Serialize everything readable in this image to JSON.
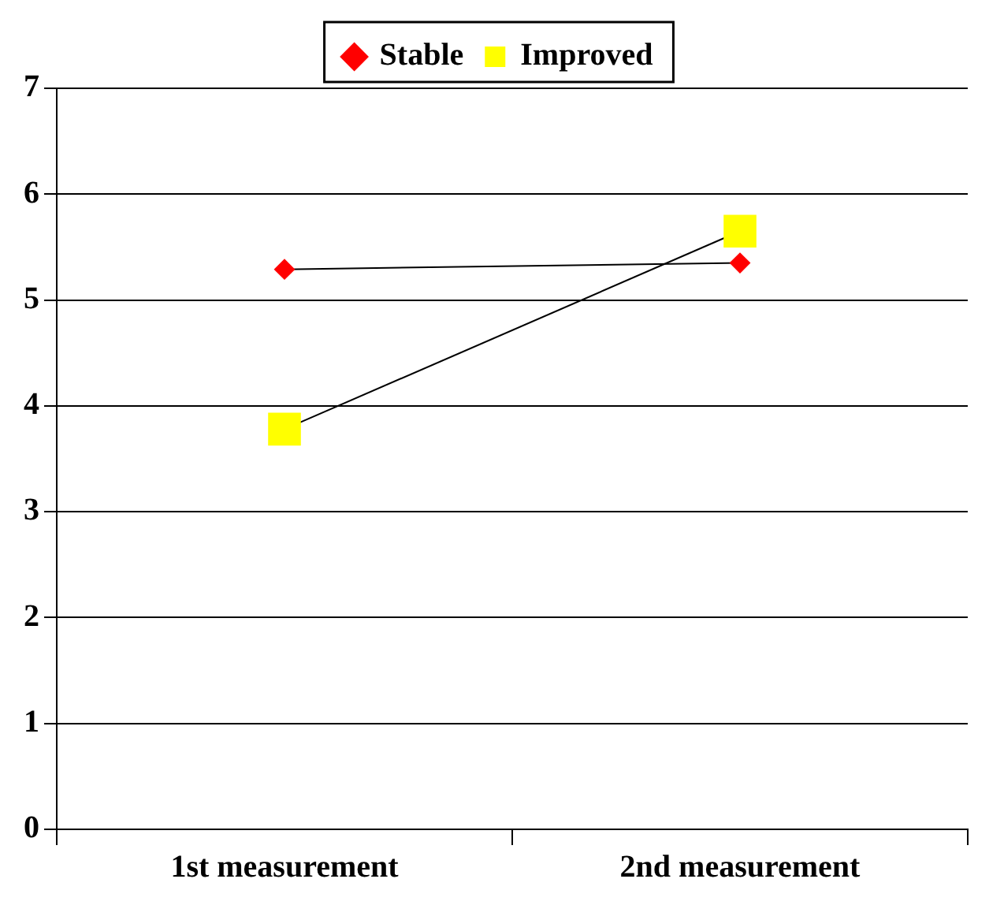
{
  "chart_data": {
    "type": "line",
    "categories": [
      "1st measurement",
      "2nd measurement"
    ],
    "series": [
      {
        "name": "Stable",
        "color": "#ff0000",
        "marker": "diamond",
        "values": [
          5.29,
          5.35
        ]
      },
      {
        "name": "Improved",
        "color": "#ffff00",
        "marker": "square",
        "values": [
          3.78,
          5.65
        ]
      }
    ],
    "ylim": [
      0,
      7
    ],
    "yticks": [
      0,
      1,
      2,
      3,
      4,
      5,
      6,
      7
    ],
    "grid": "y",
    "legend": "top",
    "line_style": "solid"
  }
}
